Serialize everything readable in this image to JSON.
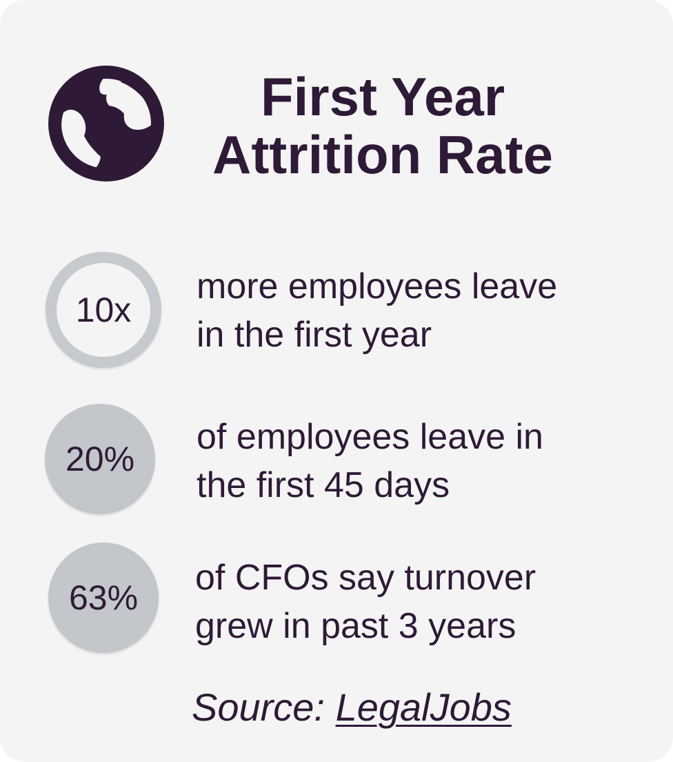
{
  "header": {
    "icon": "globe-icon",
    "title_line1": "First Year",
    "title_line2": "Attrition Rate"
  },
  "stats": [
    {
      "value": "10x",
      "text_line1": "more employees leave",
      "text_line2": "in the first year",
      "style": "ring"
    },
    {
      "value": "20%",
      "text_line1": "of employees leave in",
      "text_line2": "the first 45 days",
      "style": "filled"
    },
    {
      "value": "63%",
      "text_line1": "of CFOs say turnover",
      "text_line2": "grew in past 3 years",
      "style": "filled"
    }
  ],
  "source": {
    "prefix": "Source: ",
    "link_text": "LegalJobs"
  },
  "colors": {
    "text": "#2e1a36",
    "card_background": "#f4f4f4",
    "circle_gray": "#c3c6ca"
  }
}
